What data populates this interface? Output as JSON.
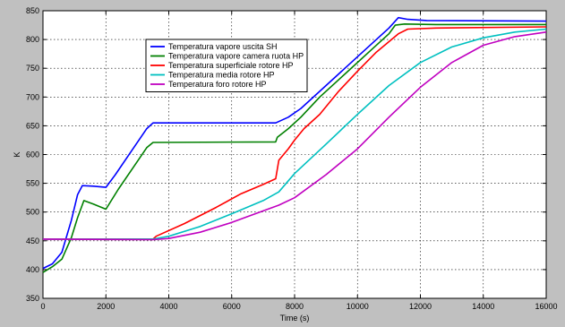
{
  "chart_data": {
    "type": "line",
    "title": "",
    "xlabel": "Time (s)",
    "ylabel": "K",
    "xlim": [
      0,
      16000
    ],
    "ylim": [
      350,
      850
    ],
    "xticks": [
      0,
      2000,
      4000,
      6000,
      8000,
      10000,
      12000,
      14000,
      16000
    ],
    "yticks": [
      350,
      400,
      450,
      500,
      550,
      600,
      650,
      700,
      750,
      800,
      850
    ],
    "grid": true,
    "legend_position": "top-center",
    "series": [
      {
        "name": "Temperatura vapore uscita SH",
        "color": "#0000ff",
        "points": [
          [
            0,
            402
          ],
          [
            300,
            410
          ],
          [
            600,
            430
          ],
          [
            900,
            485
          ],
          [
            1100,
            530
          ],
          [
            1250,
            546
          ],
          [
            1600,
            545
          ],
          [
            2000,
            543
          ],
          [
            2300,
            565
          ],
          [
            2800,
            605
          ],
          [
            3300,
            645
          ],
          [
            3500,
            655
          ],
          [
            7400,
            655
          ],
          [
            7800,
            665
          ],
          [
            8200,
            680
          ],
          [
            8800,
            710
          ],
          [
            9600,
            750
          ],
          [
            10500,
            795
          ],
          [
            11000,
            820
          ],
          [
            11300,
            838
          ],
          [
            11600,
            835
          ],
          [
            12200,
            833
          ],
          [
            16000,
            832
          ]
        ]
      },
      {
        "name": "Temperatura vapore camera ruota HP",
        "color": "#008000",
        "points": [
          [
            0,
            395
          ],
          [
            300,
            405
          ],
          [
            600,
            418
          ],
          [
            900,
            455
          ],
          [
            1100,
            490
          ],
          [
            1300,
            520
          ],
          [
            1600,
            514
          ],
          [
            2000,
            505
          ],
          [
            2400,
            540
          ],
          [
            2900,
            580
          ],
          [
            3300,
            612
          ],
          [
            3500,
            621
          ],
          [
            7400,
            622
          ],
          [
            7450,
            630
          ],
          [
            7800,
            645
          ],
          [
            8200,
            665
          ],
          [
            8800,
            700
          ],
          [
            9600,
            740
          ],
          [
            10500,
            785
          ],
          [
            11000,
            810
          ],
          [
            11200,
            825
          ],
          [
            11500,
            827
          ],
          [
            12500,
            826
          ],
          [
            16000,
            826
          ]
        ]
      },
      {
        "name": "Temperatura superficiale rotore HP",
        "color": "#ff0000",
        "points": [
          [
            0,
            453
          ],
          [
            3500,
            453
          ],
          [
            3600,
            458
          ],
          [
            4500,
            480
          ],
          [
            5500,
            508
          ],
          [
            6300,
            532
          ],
          [
            7000,
            548
          ],
          [
            7400,
            558
          ],
          [
            7500,
            590
          ],
          [
            7800,
            610
          ],
          [
            8000,
            625
          ],
          [
            8300,
            645
          ],
          [
            8800,
            670
          ],
          [
            9400,
            710
          ],
          [
            10000,
            745
          ],
          [
            10600,
            778
          ],
          [
            11300,
            810
          ],
          [
            11600,
            818
          ],
          [
            12500,
            820
          ],
          [
            16000,
            822
          ]
        ]
      },
      {
        "name": "Temperatura media rotore HP",
        "color": "#00c0c0",
        "points": [
          [
            0,
            453
          ],
          [
            3500,
            453
          ],
          [
            4000,
            458
          ],
          [
            5000,
            475
          ],
          [
            6000,
            497
          ],
          [
            7000,
            520
          ],
          [
            7500,
            535
          ],
          [
            8000,
            567
          ],
          [
            9000,
            618
          ],
          [
            10000,
            670
          ],
          [
            11000,
            720
          ],
          [
            12000,
            760
          ],
          [
            13000,
            787
          ],
          [
            14000,
            803
          ],
          [
            15000,
            813
          ],
          [
            16000,
            818
          ]
        ]
      },
      {
        "name": "Temperatura foro rotore HP",
        "color": "#c000c0",
        "points": [
          [
            0,
            453
          ],
          [
            3500,
            452
          ],
          [
            4000,
            454
          ],
          [
            5000,
            465
          ],
          [
            6000,
            482
          ],
          [
            7000,
            502
          ],
          [
            7500,
            512
          ],
          [
            8000,
            525
          ],
          [
            9000,
            565
          ],
          [
            10000,
            610
          ],
          [
            11000,
            665
          ],
          [
            12000,
            717
          ],
          [
            13000,
            760
          ],
          [
            14000,
            790
          ],
          [
            15000,
            805
          ],
          [
            16000,
            813
          ]
        ]
      }
    ]
  }
}
